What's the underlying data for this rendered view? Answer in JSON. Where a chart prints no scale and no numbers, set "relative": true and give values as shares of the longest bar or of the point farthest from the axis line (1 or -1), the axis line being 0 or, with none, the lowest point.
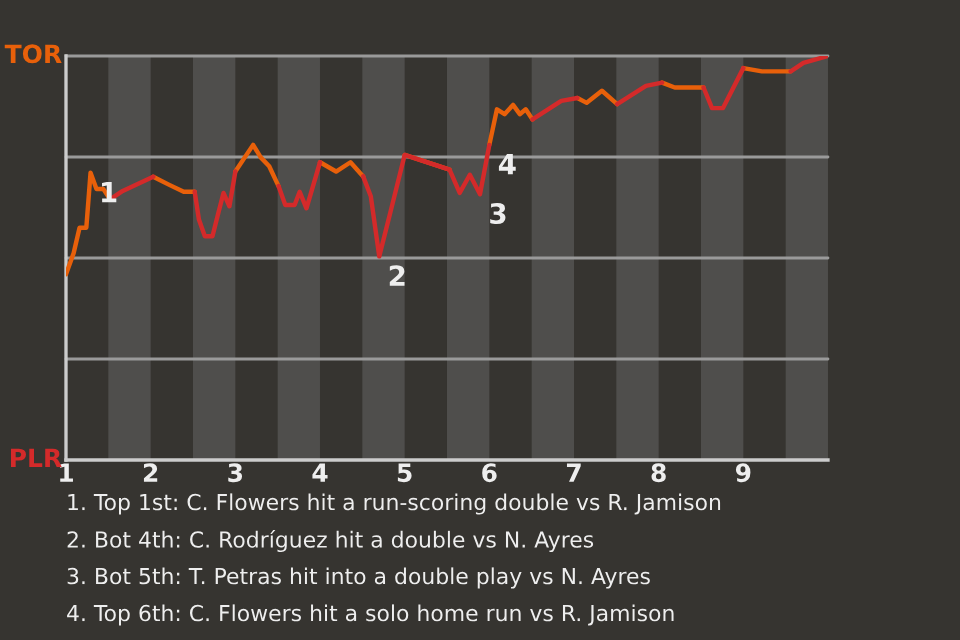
{
  "chart_data": {
    "type": "line",
    "relative": true,
    "x": [
      1.0,
      1.09,
      1.16,
      1.24,
      1.29,
      1.36,
      1.44,
      1.52,
      1.67,
      2.03,
      2.22,
      2.39,
      2.52,
      2.57,
      2.64,
      2.73,
      2.8,
      2.86,
      2.93,
      3.0,
      3.21,
      3.3,
      3.4,
      3.51,
      3.59,
      3.7,
      3.76,
      3.84,
      4.0,
      4.19,
      4.36,
      4.51,
      4.6,
      4.7,
      4.83,
      5.0,
      5.53,
      5.65,
      5.77,
      5.89,
      6.0,
      6.09,
      6.18,
      6.28,
      6.36,
      6.43,
      6.51,
      6.85,
      7.04,
      7.15,
      7.33,
      7.51,
      7.85,
      8.04,
      8.19,
      8.53,
      8.63,
      8.76,
      9.0,
      9.22,
      9.56,
      9.71,
      10.0
    ],
    "series": [
      {
        "color": "#e8600a",
        "values": [
          0.46,
          0.512,
          0.575,
          0.575,
          0.711,
          0.671,
          0.671,
          0.645,
          null,
          0.701,
          0.681,
          0.664,
          0.664,
          null,
          null,
          null,
          null,
          null,
          null,
          0.714,
          0.78,
          0.749,
          0.727,
          0.678,
          null,
          null,
          null,
          null,
          0.737,
          0.714,
          0.737,
          0.702,
          null,
          null,
          null,
          0.755,
          0.719,
          null,
          null,
          null,
          0.78,
          0.868,
          0.856,
          0.879,
          0.856,
          0.868,
          0.843,
          null,
          0.896,
          0.884,
          0.914,
          0.881,
          null,
          0.934,
          0.922,
          0.922,
          null,
          null,
          0.97,
          0.962,
          0.962,
          null,
          null
        ]
      },
      {
        "color": "#d42a2a",
        "values": [
          null,
          null,
          null,
          null,
          null,
          null,
          null,
          0.645,
          0.666,
          0.701,
          null,
          null,
          0.664,
          0.595,
          0.554,
          0.554,
          0.612,
          0.661,
          0.628,
          0.714,
          null,
          null,
          null,
          0.678,
          0.631,
          0.631,
          0.664,
          0.623,
          0.737,
          null,
          null,
          0.702,
          0.653,
          0.504,
          0.612,
          0.755,
          0.719,
          0.661,
          0.706,
          0.658,
          0.78,
          null,
          null,
          null,
          null,
          null,
          0.843,
          0.889,
          0.896,
          null,
          null,
          0.881,
          0.926,
          0.934,
          null,
          0.922,
          0.871,
          0.871,
          0.97,
          null,
          0.962,
          0.983,
          1.0
        ]
      }
    ],
    "xlim": [
      1,
      10
    ],
    "xticks": [
      1,
      2,
      3,
      4,
      5,
      6,
      7,
      8,
      9
    ],
    "ref_lines": [
      {
        "axis": "y",
        "value": 0.25,
        "label": null,
        "color": "#9a9a9a"
      },
      {
        "axis": "y",
        "value": 0.5,
        "label": null,
        "color": "#9a9a9a"
      },
      {
        "axis": "y",
        "value": 0.75,
        "label": null,
        "color": "#9a9a9a"
      },
      {
        "axis": "y",
        "value": 1.0,
        "label": null,
        "color": "#9a9a9a"
      }
    ],
    "bands": [
      {
        "axis": "x",
        "from": 1.5,
        "to": 2,
        "label": null,
        "color": "#4f4e4c"
      },
      {
        "axis": "x",
        "from": 2.5,
        "to": 3,
        "label": null,
        "color": "#4f4e4c"
      },
      {
        "axis": "x",
        "from": 3.5,
        "to": 4,
        "label": null,
        "color": "#4f4e4c"
      },
      {
        "axis": "x",
        "from": 4.5,
        "to": 5,
        "label": null,
        "color": "#4f4e4c"
      },
      {
        "axis": "x",
        "from": 5.5,
        "to": 6,
        "label": null,
        "color": "#4f4e4c"
      },
      {
        "axis": "x",
        "from": 6.5,
        "to": 7,
        "label": null,
        "color": "#4f4e4c"
      },
      {
        "axis": "x",
        "from": 7.5,
        "to": 8,
        "label": null,
        "color": "#4f4e4c"
      },
      {
        "axis": "x",
        "from": 8.5,
        "to": 9,
        "label": null,
        "color": "#4f4e4c"
      },
      {
        "axis": "x",
        "from": 9.5,
        "to": 10,
        "label": null,
        "color": "#4f4e4c"
      }
    ],
    "annotations": [
      "TOR",
      "PLR",
      {
        "text": "1",
        "x": 1.29,
        "y": 0.711
      },
      {
        "text": "2",
        "x": 4.7,
        "y": 0.504
      },
      {
        "text": "3",
        "x": 5.89,
        "y": 0.658
      },
      {
        "text": "4",
        "x": 6.0,
        "y": 0.78
      },
      "1. Top 1st: C. Flowers hit a run-scoring double vs R. Jamison",
      "2. Bot 4th: C. Rodríguez hit a double vs N. Ayres",
      "3. Bot 5th: T. Petras hit into a double play vs N. Ayres",
      "4. Top 6th: C. Flowers hit a solo home run vs R. Jamison"
    ]
  }
}
